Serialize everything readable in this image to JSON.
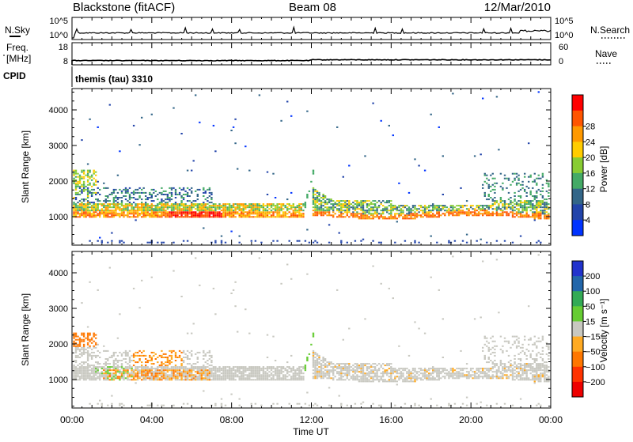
{
  "header": {
    "station": "Blackstone (fitACF)",
    "beam": "Beam 08",
    "date": "12/Mar/2010"
  },
  "noise_panel": {
    "left_label": "N.Sky",
    "right_label": "N.Search",
    "left_ticks": [
      "10^5",
      "10^0"
    ],
    "right_ticks": [
      "10^5",
      "10^0"
    ]
  },
  "freq_panel": {
    "left_label_1": "Freq.",
    "left_label_2": "[MHz]",
    "left_ticks": [
      "18",
      "8"
    ],
    "right_ticks": [
      "60",
      "0"
    ],
    "right_label": "Nave"
  },
  "cpid": {
    "label": "CPID",
    "value": "themis (tau) 3310"
  },
  "chart_data": [
    {
      "type": "heatmap",
      "name": "power",
      "ylabel": "Slant Range [km]",
      "y_ticks": [
        "1000",
        "2000",
        "3000",
        "4000"
      ],
      "ylim": [
        200,
        4600
      ],
      "colorbar_label": "Power [dB]",
      "colorbar_ticks": [
        "4",
        "8",
        "12",
        "16",
        "20",
        "24",
        "28"
      ],
      "colors": [
        "#0033ff",
        "#2244aa",
        "#336688",
        "#44aa66",
        "#88cc33",
        "#ffcc00",
        "#ff9900",
        "#ff5500",
        "#ff0000"
      ],
      "xlim": [
        0,
        24
      ]
    },
    {
      "type": "heatmap",
      "name": "velocity",
      "ylabel": "Slant Range [km]",
      "y_ticks": [
        "1000",
        "2000",
        "3000",
        "4000"
      ],
      "ylim": [
        200,
        4600
      ],
      "colorbar_label": "Velocity [m s⁻¹]",
      "colorbar_ticks": [
        "200",
        "100",
        "50",
        "15",
        "−15",
        "−50",
        "−100",
        "−200"
      ],
      "colors": [
        "#2233cc",
        "#2266aa",
        "#33aa55",
        "#66cc33",
        "#c8c8c0",
        "#ffaa22",
        "#ff7700",
        "#ff3300",
        "#ee0000"
      ],
      "xlim": [
        0,
        24
      ]
    }
  ],
  "x_axis": {
    "ticks": [
      "00:00",
      "04:00",
      "08:00",
      "12:00",
      "16:00",
      "20:00",
      "00:00"
    ],
    "label": "Time UT"
  }
}
